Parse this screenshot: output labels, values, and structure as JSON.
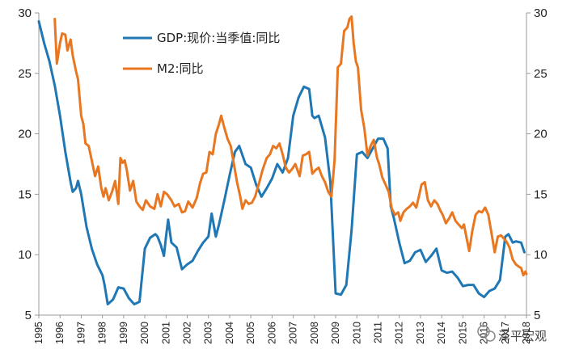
{
  "chart_data": {
    "type": "line",
    "title": "",
    "xlabel": "",
    "ylabel": "",
    "ylim": [
      5,
      30
    ],
    "y2lim": [
      5,
      30
    ],
    "yticks": [
      5,
      10,
      15,
      20,
      25,
      30
    ],
    "x_ticks": [
      "1995",
      "1996",
      "1997",
      "1998",
      "1999",
      "2000",
      "2001",
      "2002",
      "2003",
      "2004",
      "2005",
      "2006",
      "2007",
      "2008",
      "2009",
      "2010",
      "2011",
      "2012",
      "2013",
      "2014",
      "2015",
      "2016",
      "2017",
      "2018"
    ],
    "xlim": [
      1995,
      2018.0
    ],
    "grid": false,
    "legend": "top-left",
    "series": [
      {
        "name": "GDP:现价:当季值:同比",
        "color": "#1f77b4",
        "points": [
          [
            1995.0,
            29.3
          ],
          [
            1995.25,
            27.5
          ],
          [
            1995.5,
            26.0
          ],
          [
            1995.75,
            24.0
          ],
          [
            1996.0,
            21.5
          ],
          [
            1996.25,
            18.5
          ],
          [
            1996.5,
            16.0
          ],
          [
            1996.6,
            15.2
          ],
          [
            1996.75,
            15.5
          ],
          [
            1996.85,
            16.1
          ],
          [
            1997.0,
            15.0
          ],
          [
            1997.25,
            12.3
          ],
          [
            1997.5,
            10.5
          ],
          [
            1997.75,
            9.2
          ],
          [
            1998.0,
            8.3
          ],
          [
            1998.1,
            7.5
          ],
          [
            1998.25,
            5.9
          ],
          [
            1998.5,
            6.3
          ],
          [
            1998.75,
            7.3
          ],
          [
            1999.0,
            7.2
          ],
          [
            1999.25,
            6.4
          ],
          [
            1999.5,
            5.9
          ],
          [
            1999.75,
            6.1
          ],
          [
            2000.0,
            10.5
          ],
          [
            2000.25,
            11.4
          ],
          [
            2000.5,
            11.7
          ],
          [
            2000.6,
            11.5
          ],
          [
            2000.75,
            10.8
          ],
          [
            2000.9,
            9.9
          ],
          [
            2001.0,
            11.5
          ],
          [
            2001.1,
            12.9
          ],
          [
            2001.25,
            11.0
          ],
          [
            2001.5,
            10.6
          ],
          [
            2001.75,
            8.8
          ],
          [
            2002.0,
            9.2
          ],
          [
            2002.25,
            9.5
          ],
          [
            2002.5,
            10.3
          ],
          [
            2002.75,
            11.0
          ],
          [
            2003.0,
            11.5
          ],
          [
            2003.15,
            13.4
          ],
          [
            2003.35,
            11.5
          ],
          [
            2003.5,
            12.5
          ],
          [
            2003.75,
            14.5
          ],
          [
            2004.0,
            16.6
          ],
          [
            2004.25,
            18.5
          ],
          [
            2004.45,
            19.0
          ],
          [
            2004.75,
            17.5
          ],
          [
            2005.0,
            17.2
          ],
          [
            2005.25,
            15.8
          ],
          [
            2005.5,
            14.8
          ],
          [
            2005.75,
            15.5
          ],
          [
            2006.0,
            16.3
          ],
          [
            2006.25,
            17.5
          ],
          [
            2006.5,
            16.8
          ],
          [
            2006.75,
            18.0
          ],
          [
            2007.0,
            21.5
          ],
          [
            2007.25,
            23.0
          ],
          [
            2007.5,
            23.9
          ],
          [
            2007.75,
            23.7
          ],
          [
            2007.9,
            21.5
          ],
          [
            2008.0,
            21.3
          ],
          [
            2008.2,
            21.5
          ],
          [
            2008.5,
            19.7
          ],
          [
            2008.75,
            16.0
          ],
          [
            2008.9,
            10.5
          ],
          [
            2009.0,
            6.8
          ],
          [
            2009.25,
            6.7
          ],
          [
            2009.5,
            7.5
          ],
          [
            2009.75,
            12.0
          ],
          [
            2010.0,
            18.3
          ],
          [
            2010.25,
            18.5
          ],
          [
            2010.5,
            18.0
          ],
          [
            2010.75,
            18.8
          ],
          [
            2011.0,
            19.6
          ],
          [
            2011.25,
            19.6
          ],
          [
            2011.45,
            18.8
          ],
          [
            2011.6,
            14.0
          ],
          [
            2011.75,
            13.0
          ],
          [
            2012.0,
            11.0
          ],
          [
            2012.25,
            9.3
          ],
          [
            2012.5,
            9.5
          ],
          [
            2012.75,
            10.2
          ],
          [
            2013.0,
            10.4
          ],
          [
            2013.25,
            9.4
          ],
          [
            2013.5,
            9.9
          ],
          [
            2013.75,
            10.5
          ],
          [
            2014.0,
            8.7
          ],
          [
            2014.25,
            8.5
          ],
          [
            2014.5,
            8.6
          ],
          [
            2014.75,
            8.1
          ],
          [
            2015.0,
            7.4
          ],
          [
            2015.25,
            7.5
          ],
          [
            2015.5,
            7.5
          ],
          [
            2015.75,
            6.8
          ],
          [
            2016.0,
            6.5
          ],
          [
            2016.25,
            7.0
          ],
          [
            2016.5,
            7.2
          ],
          [
            2016.75,
            7.9
          ],
          [
            2017.0,
            11.5
          ],
          [
            2017.15,
            11.7
          ],
          [
            2017.35,
            11.0
          ],
          [
            2017.5,
            11.1
          ],
          [
            2017.75,
            11.0
          ],
          [
            2017.9,
            10.2
          ]
        ]
      },
      {
        "name": "M2:同比",
        "color": "#e87722",
        "points": [
          [
            1995.75,
            29.5
          ],
          [
            1995.85,
            25.8
          ],
          [
            1996.0,
            27.5
          ],
          [
            1996.1,
            28.3
          ],
          [
            1996.25,
            28.2
          ],
          [
            1996.35,
            26.9
          ],
          [
            1996.5,
            27.8
          ],
          [
            1996.6,
            26.5
          ],
          [
            1996.75,
            25.2
          ],
          [
            1996.85,
            24.5
          ],
          [
            1997.0,
            21.5
          ],
          [
            1997.1,
            20.8
          ],
          [
            1997.2,
            19.2
          ],
          [
            1997.35,
            19.0
          ],
          [
            1997.5,
            17.8
          ],
          [
            1997.65,
            16.5
          ],
          [
            1997.8,
            17.3
          ],
          [
            1997.95,
            15.5
          ],
          [
            1998.05,
            14.8
          ],
          [
            1998.15,
            15.5
          ],
          [
            1998.3,
            14.5
          ],
          [
            1998.45,
            15.2
          ],
          [
            1998.6,
            16.1
          ],
          [
            1998.75,
            14.2
          ],
          [
            1998.85,
            18.0
          ],
          [
            1998.95,
            17.6
          ],
          [
            1999.05,
            17.8
          ],
          [
            1999.15,
            17.0
          ],
          [
            1999.3,
            15.3
          ],
          [
            1999.45,
            16.1
          ],
          [
            1999.6,
            14.4
          ],
          [
            1999.75,
            14.0
          ],
          [
            1999.9,
            13.7
          ],
          [
            2000.05,
            14.5
          ],
          [
            2000.25,
            14.0
          ],
          [
            2000.45,
            13.8
          ],
          [
            2000.6,
            15.0
          ],
          [
            2000.75,
            14.0
          ],
          [
            2000.9,
            15.2
          ],
          [
            2001.05,
            15.0
          ],
          [
            2001.25,
            14.5
          ],
          [
            2001.4,
            14.0
          ],
          [
            2001.6,
            14.2
          ],
          [
            2001.75,
            13.5
          ],
          [
            2001.9,
            13.6
          ],
          [
            2002.05,
            14.4
          ],
          [
            2002.25,
            13.9
          ],
          [
            2002.45,
            14.7
          ],
          [
            2002.6,
            15.9
          ],
          [
            2002.75,
            16.7
          ],
          [
            2002.9,
            16.8
          ],
          [
            2003.05,
            18.5
          ],
          [
            2003.2,
            18.3
          ],
          [
            2003.35,
            20.0
          ],
          [
            2003.5,
            20.8
          ],
          [
            2003.6,
            21.5
          ],
          [
            2003.75,
            20.5
          ],
          [
            2003.9,
            19.6
          ],
          [
            2004.05,
            19.0
          ],
          [
            2004.2,
            17.5
          ],
          [
            2004.35,
            16.0
          ],
          [
            2004.5,
            14.8
          ],
          [
            2004.6,
            13.8
          ],
          [
            2004.75,
            14.5
          ],
          [
            2004.9,
            14.2
          ],
          [
            2005.05,
            14.3
          ],
          [
            2005.2,
            14.8
          ],
          [
            2005.4,
            16.0
          ],
          [
            2005.55,
            17.0
          ],
          [
            2005.75,
            18.0
          ],
          [
            2005.9,
            18.3
          ],
          [
            2006.05,
            19.0
          ],
          [
            2006.2,
            18.8
          ],
          [
            2006.35,
            19.2
          ],
          [
            2006.5,
            18.3
          ],
          [
            2006.65,
            17.2
          ],
          [
            2006.8,
            16.8
          ],
          [
            2006.95,
            17.1
          ],
          [
            2007.1,
            17.5
          ],
          [
            2007.3,
            16.5
          ],
          [
            2007.45,
            18.2
          ],
          [
            2007.6,
            18.3
          ],
          [
            2007.75,
            18.5
          ],
          [
            2007.9,
            16.7
          ],
          [
            2008.05,
            17.0
          ],
          [
            2008.2,
            17.2
          ],
          [
            2008.35,
            16.5
          ],
          [
            2008.5,
            16.0
          ],
          [
            2008.65,
            15.2
          ],
          [
            2008.8,
            14.8
          ],
          [
            2008.95,
            17.8
          ],
          [
            2009.1,
            25.5
          ],
          [
            2009.25,
            25.8
          ],
          [
            2009.4,
            28.5
          ],
          [
            2009.55,
            28.8
          ],
          [
            2009.65,
            29.5
          ],
          [
            2009.75,
            29.7
          ],
          [
            2009.85,
            27.5
          ],
          [
            2009.95,
            26.0
          ],
          [
            2010.05,
            25.5
          ],
          [
            2010.2,
            22.0
          ],
          [
            2010.35,
            20.5
          ],
          [
            2010.5,
            18.2
          ],
          [
            2010.65,
            19.0
          ],
          [
            2010.8,
            19.5
          ],
          [
            2010.95,
            18.0
          ],
          [
            2011.05,
            17.5
          ],
          [
            2011.2,
            16.4
          ],
          [
            2011.35,
            15.8
          ],
          [
            2011.5,
            15.2
          ],
          [
            2011.65,
            13.8
          ],
          [
            2011.8,
            13.3
          ],
          [
            2011.95,
            13.5
          ],
          [
            2012.05,
            12.8
          ],
          [
            2012.2,
            13.5
          ],
          [
            2012.35,
            13.8
          ],
          [
            2012.5,
            14.0
          ],
          [
            2012.65,
            14.3
          ],
          [
            2012.8,
            13.9
          ],
          [
            2012.95,
            15.0
          ],
          [
            2013.05,
            15.8
          ],
          [
            2013.2,
            16.0
          ],
          [
            2013.35,
            14.5
          ],
          [
            2013.5,
            14.0
          ],
          [
            2013.65,
            14.5
          ],
          [
            2013.8,
            14.2
          ],
          [
            2013.95,
            13.6
          ],
          [
            2014.05,
            13.3
          ],
          [
            2014.2,
            12.6
          ],
          [
            2014.35,
            13.0
          ],
          [
            2014.5,
            13.5
          ],
          [
            2014.65,
            12.8
          ],
          [
            2014.8,
            12.5
          ],
          [
            2014.95,
            12.2
          ],
          [
            2015.05,
            12.5
          ],
          [
            2015.15,
            11.6
          ],
          [
            2015.3,
            10.3
          ],
          [
            2015.45,
            12.0
          ],
          [
            2015.6,
            13.3
          ],
          [
            2015.75,
            13.6
          ],
          [
            2015.9,
            13.5
          ],
          [
            2016.05,
            13.9
          ],
          [
            2016.2,
            13.3
          ],
          [
            2016.35,
            11.8
          ],
          [
            2016.5,
            10.2
          ],
          [
            2016.65,
            11.5
          ],
          [
            2016.8,
            11.6
          ],
          [
            2016.95,
            11.3
          ],
          [
            2017.05,
            11.1
          ],
          [
            2017.2,
            10.6
          ],
          [
            2017.35,
            9.6
          ],
          [
            2017.5,
            9.2
          ],
          [
            2017.65,
            9.0
          ],
          [
            2017.75,
            8.9
          ],
          [
            2017.85,
            8.3
          ],
          [
            2017.95,
            8.6
          ],
          [
            2018.0,
            8.4
          ]
        ]
      }
    ]
  },
  "watermark": {
    "text": "泽平宏观",
    "icon": "wechat-icon"
  }
}
